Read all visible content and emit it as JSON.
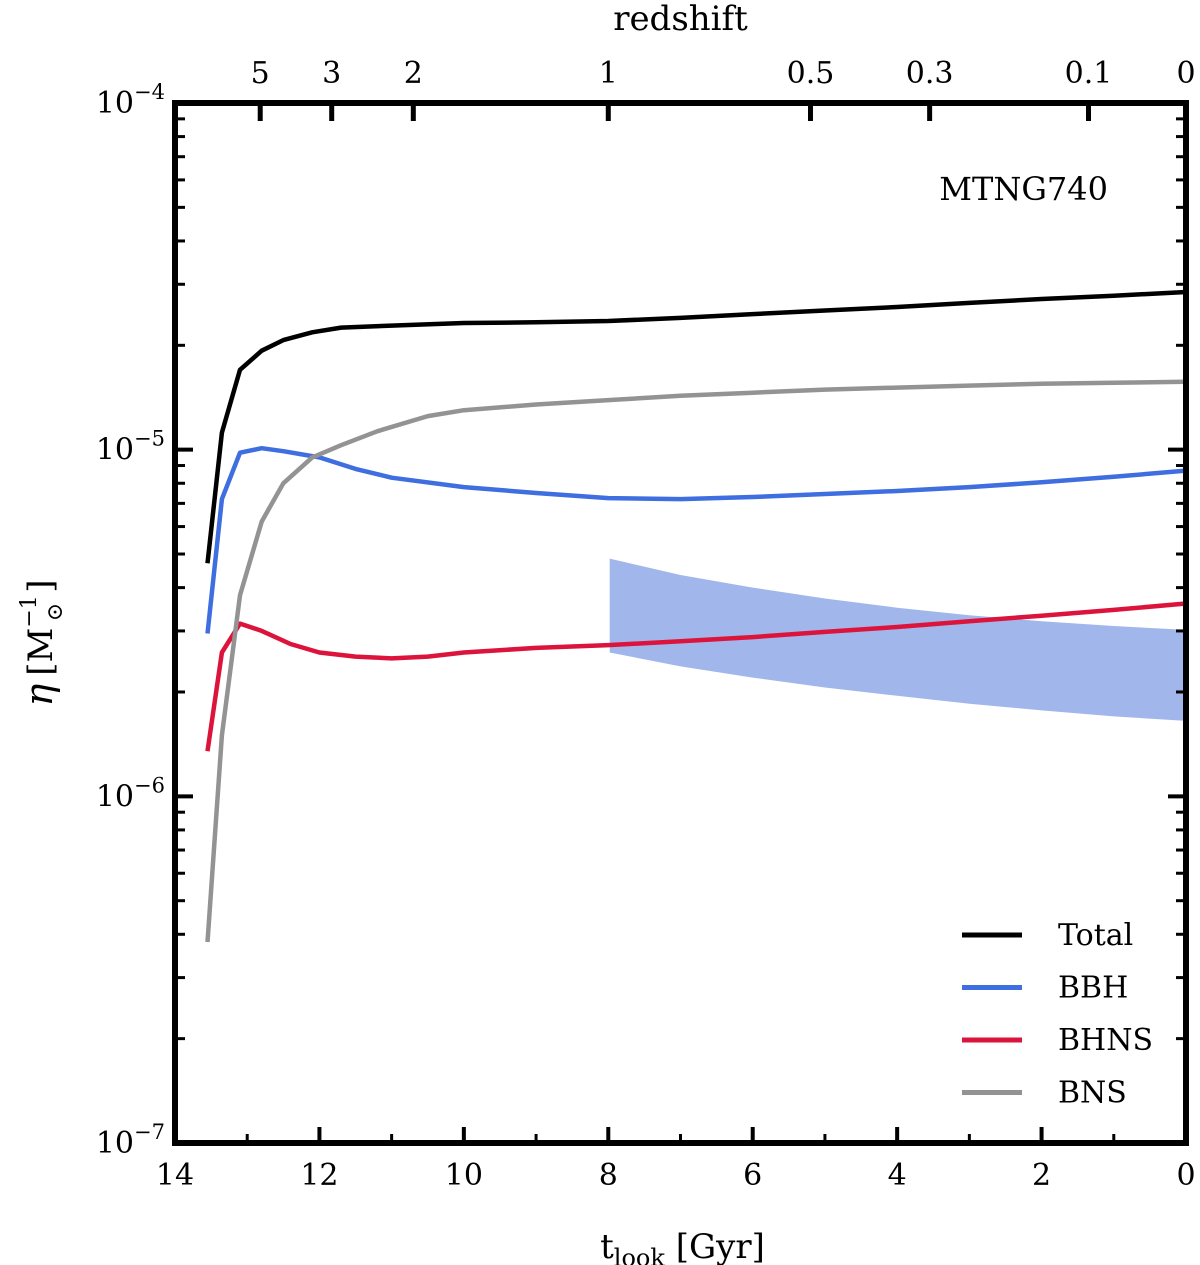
{
  "chart_data": {
    "type": "line",
    "yscale": "log",
    "annotation": "MTNG740",
    "xaxis": {
      "label_main": "t",
      "label_sub": "look",
      "label_unit": " [Gyr]",
      "range": [
        14,
        0
      ],
      "ticks": [
        14,
        12,
        10,
        8,
        6,
        4,
        2,
        0
      ],
      "tick_labels": [
        "14",
        "12",
        "10",
        "8",
        "6",
        "4",
        "2",
        "0"
      ]
    },
    "top_axis": {
      "label": "redshift",
      "ticks": [
        {
          "label": "5",
          "t": 12.82
        },
        {
          "label": "3",
          "t": 11.83
        },
        {
          "label": "2",
          "t": 10.7
        },
        {
          "label": "1",
          "t": 8.0
        },
        {
          "label": "0.5",
          "t": 5.2
        },
        {
          "label": "0.3",
          "t": 3.55
        },
        {
          "label": "0.1",
          "t": 1.35
        },
        {
          "label": "0",
          "t": 0.0
        }
      ]
    },
    "yaxis": {
      "label_main": "η",
      "label_unit": "M",
      "label_sub": "⊙",
      "label_sup": "−1",
      "range": [
        1e-07,
        0.0001
      ],
      "ticks": [
        {
          "base": "10",
          "exp": "−7",
          "value": 1e-07
        },
        {
          "base": "10",
          "exp": "−6",
          "value": 1e-06
        },
        {
          "base": "10",
          "exp": "−5",
          "value": 1e-05
        },
        {
          "base": "10",
          "exp": "−4",
          "value": 0.0001
        }
      ]
    },
    "series": [
      {
        "name": "Total",
        "color": "#000000",
        "points": [
          [
            13.55,
            4.7e-06
          ],
          [
            13.35,
            1.12e-05
          ],
          [
            13.1,
            1.7e-05
          ],
          [
            12.8,
            1.93e-05
          ],
          [
            12.5,
            2.07e-05
          ],
          [
            12.1,
            2.18e-05
          ],
          [
            11.7,
            2.25e-05
          ],
          [
            11.0,
            2.28e-05
          ],
          [
            10.0,
            2.32e-05
          ],
          [
            9.0,
            2.33e-05
          ],
          [
            8.0,
            2.35e-05
          ],
          [
            7.0,
            2.4e-05
          ],
          [
            6.0,
            2.46e-05
          ],
          [
            5.0,
            2.52e-05
          ],
          [
            4.0,
            2.58e-05
          ],
          [
            3.0,
            2.65e-05
          ],
          [
            2.0,
            2.72e-05
          ],
          [
            1.0,
            2.78e-05
          ],
          [
            0.0,
            2.85e-05
          ]
        ]
      },
      {
        "name": "BBH",
        "color": "#3f6ee0",
        "points": [
          [
            13.55,
            2.95e-06
          ],
          [
            13.35,
            7.2e-06
          ],
          [
            13.1,
            9.8e-06
          ],
          [
            12.8,
            1.01e-05
          ],
          [
            12.5,
            9.9e-06
          ],
          [
            12.0,
            9.5e-06
          ],
          [
            11.5,
            8.8e-06
          ],
          [
            11.0,
            8.3e-06
          ],
          [
            10.0,
            7.8e-06
          ],
          [
            9.0,
            7.5e-06
          ],
          [
            8.0,
            7.25e-06
          ],
          [
            7.0,
            7.2e-06
          ],
          [
            6.0,
            7.3e-06
          ],
          [
            5.0,
            7.45e-06
          ],
          [
            4.0,
            7.6e-06
          ],
          [
            3.0,
            7.8e-06
          ],
          [
            2.0,
            8.05e-06
          ],
          [
            1.0,
            8.35e-06
          ],
          [
            0.0,
            8.7e-06
          ]
        ]
      },
      {
        "name": "BHNS",
        "color": "#dc143c",
        "points": [
          [
            13.55,
            1.35e-06
          ],
          [
            13.35,
            2.6e-06
          ],
          [
            13.1,
            3.15e-06
          ],
          [
            12.8,
            3e-06
          ],
          [
            12.4,
            2.75e-06
          ],
          [
            12.0,
            2.6e-06
          ],
          [
            11.5,
            2.53e-06
          ],
          [
            11.0,
            2.5e-06
          ],
          [
            10.5,
            2.53e-06
          ],
          [
            10.0,
            2.6e-06
          ],
          [
            9.0,
            2.68e-06
          ],
          [
            8.0,
            2.73e-06
          ],
          [
            7.0,
            2.8e-06
          ],
          [
            6.0,
            2.88e-06
          ],
          [
            5.0,
            2.98e-06
          ],
          [
            4.0,
            3.08e-06
          ],
          [
            3.0,
            3.2e-06
          ],
          [
            2.0,
            3.32e-06
          ],
          [
            1.0,
            3.45e-06
          ],
          [
            0.0,
            3.6e-06
          ]
        ]
      },
      {
        "name": "BNS",
        "color": "#939393",
        "points": [
          [
            13.55,
            3.8e-07
          ],
          [
            13.35,
            1.5e-06
          ],
          [
            13.1,
            3.8e-06
          ],
          [
            12.8,
            6.2e-06
          ],
          [
            12.5,
            8e-06
          ],
          [
            12.1,
            9.5e-06
          ],
          [
            11.7,
            1.03e-05
          ],
          [
            11.2,
            1.13e-05
          ],
          [
            10.5,
            1.25e-05
          ],
          [
            10.0,
            1.3e-05
          ],
          [
            9.0,
            1.35e-05
          ],
          [
            8.0,
            1.39e-05
          ],
          [
            7.0,
            1.43e-05
          ],
          [
            6.0,
            1.46e-05
          ],
          [
            5.0,
            1.49e-05
          ],
          [
            4.0,
            1.51e-05
          ],
          [
            3.0,
            1.53e-05
          ],
          [
            2.0,
            1.55e-05
          ],
          [
            1.0,
            1.56e-05
          ],
          [
            0.0,
            1.57e-05
          ]
        ]
      }
    ],
    "band": {
      "color": "#6f8fe0",
      "opacity": 0.65,
      "upper": [
        [
          7.98,
          4.85e-06
        ],
        [
          7.0,
          4.35e-06
        ],
        [
          6.0,
          4e-06
        ],
        [
          5.0,
          3.72e-06
        ],
        [
          4.0,
          3.5e-06
        ],
        [
          3.0,
          3.33e-06
        ],
        [
          2.0,
          3.2e-06
        ],
        [
          1.0,
          3.1e-06
        ],
        [
          0.0,
          3.02e-06
        ]
      ],
      "lower": [
        [
          7.98,
          2.6e-06
        ],
        [
          7.0,
          2.37e-06
        ],
        [
          6.0,
          2.2e-06
        ],
        [
          5.0,
          2.06e-06
        ],
        [
          4.0,
          1.95e-06
        ],
        [
          3.0,
          1.85e-06
        ],
        [
          2.0,
          1.77e-06
        ],
        [
          1.0,
          1.7e-06
        ],
        [
          0.0,
          1.65e-06
        ]
      ]
    },
    "legend": {
      "position": "bottom-right",
      "entries": [
        "Total",
        "BBH",
        "BHNS",
        "BNS"
      ]
    }
  }
}
